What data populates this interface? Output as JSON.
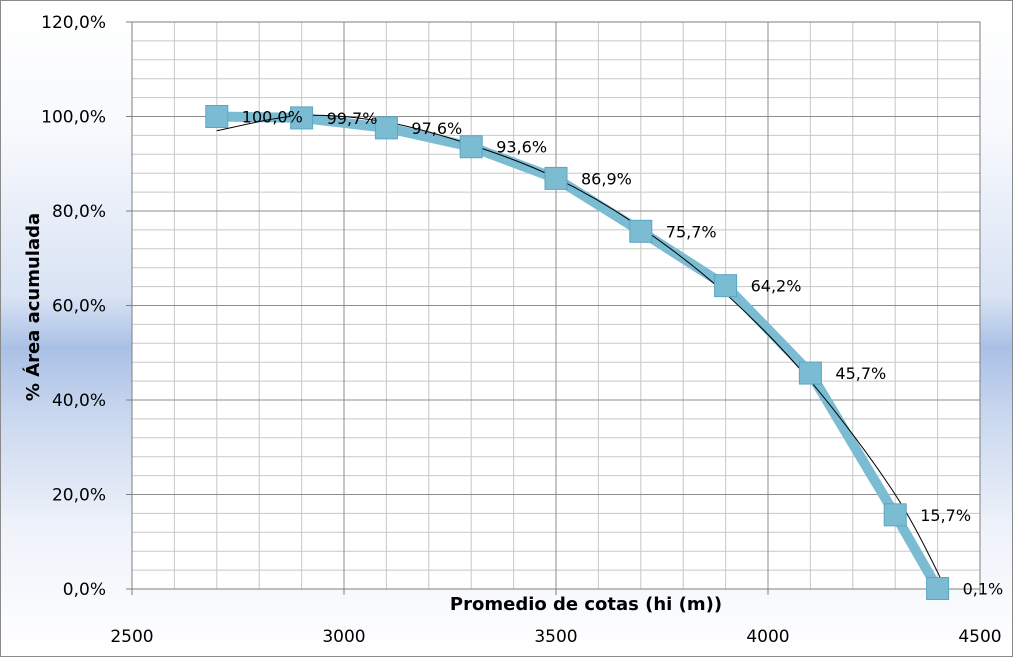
{
  "chart_data": {
    "type": "line",
    "title": "",
    "xlabel": "Promedio de cotas (hi (m))",
    "ylabel": "% Área acumulada",
    "xlim": [
      2500,
      4500
    ],
    "ylim": [
      0,
      120
    ],
    "x_ticks": [
      2500,
      3000,
      3500,
      4000,
      4500
    ],
    "x_tick_labels": [
      "2500",
      "3000",
      "3500",
      "4000",
      "4500"
    ],
    "y_ticks": [
      0,
      20,
      40,
      60,
      80,
      100,
      120
    ],
    "y_tick_labels": [
      "0,0%",
      "20,0%",
      "40,0%",
      "60,0%",
      "80,0%",
      "100,0%",
      "120,0%"
    ],
    "grid": true,
    "legend": "none",
    "series": [
      {
        "marker": "square",
        "color": "#7bbcd3",
        "x": [
          2700,
          2900,
          3100,
          3300,
          3500,
          3700,
          3900,
          4100,
          4300,
          4400
        ],
        "y": [
          100.0,
          99.7,
          97.6,
          93.6,
          86.9,
          75.7,
          64.2,
          45.7,
          15.7,
          0.1
        ],
        "labels": [
          "100,0%",
          "99,7%",
          "97,6%",
          "93,6%",
          "86,9%",
          "75,7%",
          "64,2%",
          "45,7%",
          "15,7%",
          "0,1%"
        ]
      }
    ],
    "trendline": {
      "type": "polynomial",
      "color": "#000000",
      "x": [
        2700,
        2900,
        3100,
        3300,
        3500,
        3700,
        3900,
        4100,
        4300,
        4420
      ],
      "y": [
        97.0,
        100.2,
        98.8,
        94.0,
        87.0,
        76.5,
        62.5,
        44.0,
        20.0,
        0.0
      ]
    }
  }
}
